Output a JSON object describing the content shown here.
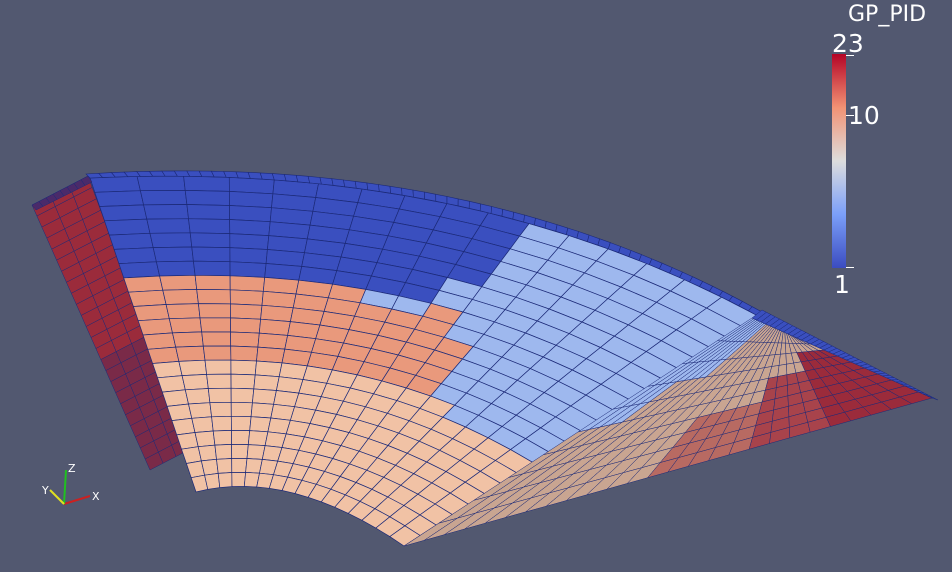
{
  "window": {
    "background": "#525870"
  },
  "scalar_bar": {
    "title": "GP_PID",
    "max_label": "23",
    "mid_label": "10",
    "min_label": "1",
    "colormap": "cool-to-warm",
    "scale": "log",
    "colors": {
      "low": "#3b4cc0",
      "mid": "#dddddd",
      "high": "#b40426"
    }
  },
  "orientation_axes": {
    "x_label": "X",
    "y_label": "Y",
    "z_label": "Z",
    "x_color": "#cc2020",
    "y_color": "#e0e020",
    "z_color": "#20c020"
  },
  "mesh": {
    "wireframe_color": "#1c2a78",
    "region_colors": {
      "dark_blue": "#3a4fbf",
      "light_blue": "#9eb8ee",
      "salmon": "#e9997c",
      "peach": "#f1c2a5",
      "tan": "#c9a591",
      "dark_red": "#9b2b3b"
    }
  }
}
